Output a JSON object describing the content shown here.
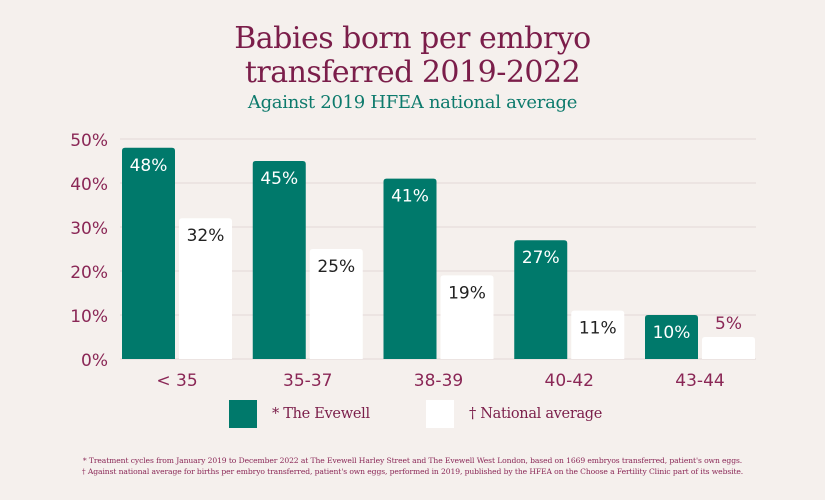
{
  "chart_data": {
    "type": "bar",
    "title": "Babies born per embryo transferred 2019-2022",
    "title_lines": [
      "Babies born per embryo",
      "transferred 2019-2022"
    ],
    "subtitle": "Against 2019 HFEA national average",
    "categories": [
      "< 35",
      "35-37",
      "38-39",
      "40-42",
      "43-44"
    ],
    "series": [
      {
        "name": "* The Evewell",
        "values": [
          48,
          45,
          41,
          27,
          10
        ],
        "color": "#00796b",
        "label_color": "#ffffff"
      },
      {
        "name": "† National average",
        "values": [
          32,
          25,
          19,
          11,
          5
        ],
        "color": "#ffffff",
        "label_color": "#222222"
      }
    ],
    "value_labels": [
      [
        "48%",
        "45%",
        "41%",
        "27%",
        "10%"
      ],
      [
        "32%",
        "25%",
        "19%",
        "11%",
        "5%"
      ]
    ],
    "ylim": [
      0,
      50
    ],
    "yticks": [
      0,
      10,
      20,
      30,
      40,
      50
    ],
    "ytick_labels": [
      "0%",
      "10%",
      "20%",
      "30%",
      "40%",
      "50%"
    ],
    "xlabel": "",
    "ylabel": "",
    "grid": true,
    "legend": "bottom-center"
  },
  "footnotes": [
    "* Treatment cycles from January 2019 to December 2022 at The Evewell Harley Street and The Evewell West London, based on 1669 embryos transferred, patient's own eggs.",
    "† Against national average for births per embryo transferred, patient's own eggs, performed in 2019, published by the HFEA on the Choose a Fertility Clinic part of its website."
  ],
  "colors": {
    "background": "#f5f0ed",
    "title": "#7b1e4a",
    "subtitle": "#0d7a6c",
    "evewell": "#00796b",
    "national": "#ffffff",
    "gridline": "#e8dcdc",
    "axis_text": "#8a2756"
  }
}
